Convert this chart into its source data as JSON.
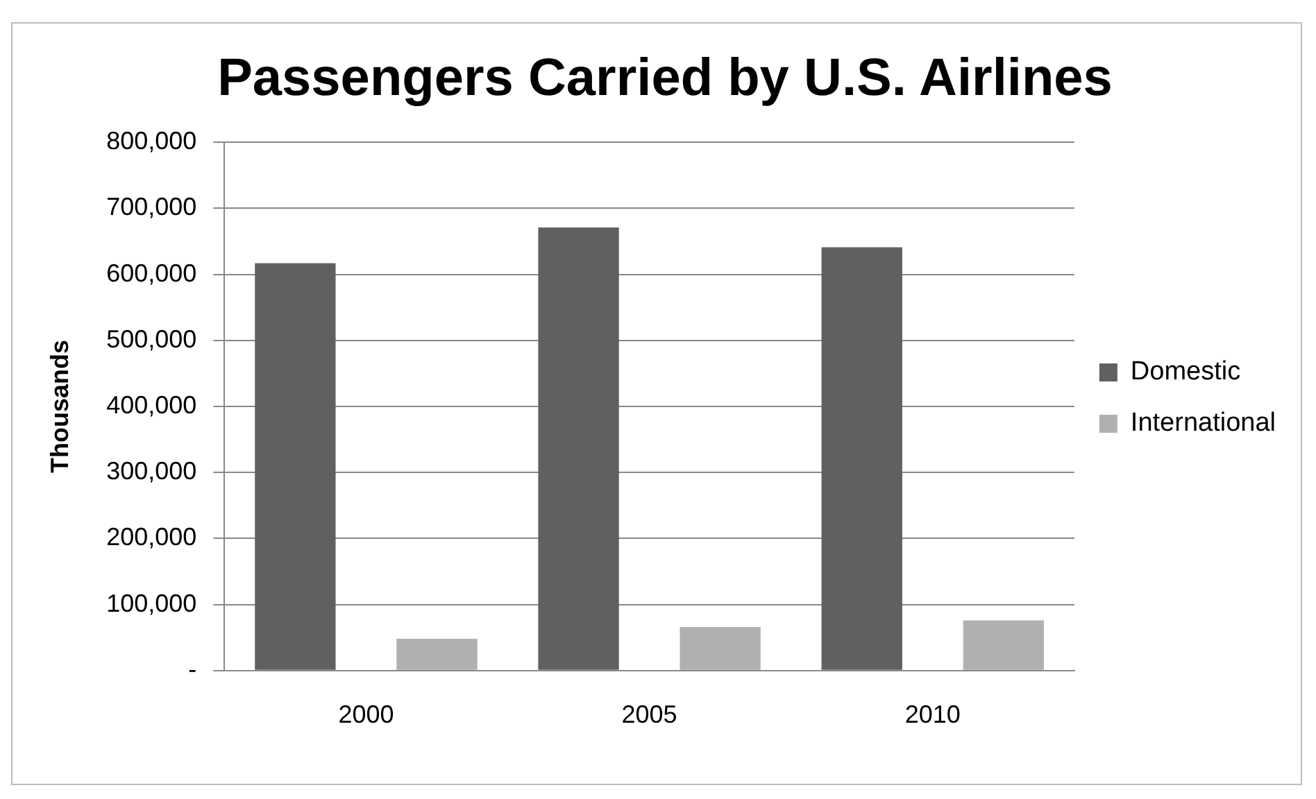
{
  "chart_data": {
    "type": "bar",
    "title": "Passengers Carried by U.S. Airlines",
    "ylabel": "Thousands",
    "categories": [
      "2000",
      "2005",
      "2010"
    ],
    "series": [
      {
        "name": "Domestic",
        "color": "#606060",
        "values": [
          617000,
          671000,
          641000
        ]
      },
      {
        "name": "International",
        "color": "#b0b0b0",
        "values": [
          48000,
          66000,
          76000
        ]
      }
    ],
    "ylim": [
      0,
      800000
    ],
    "yticks": [
      {
        "value": 0,
        "label": "-"
      },
      {
        "value": 100000,
        "label": "100,000"
      },
      {
        "value": 200000,
        "label": "200,000"
      },
      {
        "value": 300000,
        "label": "300,000"
      },
      {
        "value": 400000,
        "label": "400,000"
      },
      {
        "value": 500000,
        "label": "500,000"
      },
      {
        "value": 600000,
        "label": "600,000"
      },
      {
        "value": 700000,
        "label": "700,000"
      },
      {
        "value": 800000,
        "label": "800,000"
      }
    ],
    "grid": "y",
    "legend": "right"
  }
}
